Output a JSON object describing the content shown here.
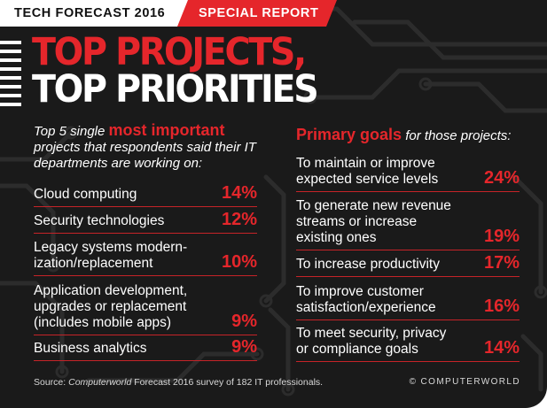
{
  "banner": {
    "left": "TECH FORECAST 2016",
    "right": "SPECIAL REPORT"
  },
  "headline": {
    "line1": "TOP PROJECTS,",
    "line2": "TOP PRIORITIES"
  },
  "left_intro": {
    "part1": "Top 5 single ",
    "highlight": "most important",
    "part2": " projects that respondents said their IT departments are working on:"
  },
  "right_intro": {
    "highlight": "Primary goals",
    "part2": " for those projects:"
  },
  "chart_data": [
    {
      "type": "table",
      "title": "Top 5 single most important projects that respondents said their IT departments are working on:",
      "categories": [
        "Cloud computing",
        "Security technologies",
        "Legacy systems modern-ization/replacement",
        "Application development, upgrades or replacement (includes mobile apps)",
        "Business analytics"
      ],
      "values": [
        "14%",
        "12%",
        "10%",
        "9%",
        "9%"
      ]
    },
    {
      "type": "table",
      "title": "Primary goals for those projects:",
      "categories": [
        "To maintain or improve expected service levels",
        "To generate new revenue streams or increase existing ones",
        "To increase productivity",
        "To improve customer satisfaction/experience",
        "To meet security, privacy or compliance goals"
      ],
      "values": [
        "24%",
        "19%",
        "17%",
        "16%",
        "14%"
      ]
    }
  ],
  "left_rows": [
    {
      "lines": [
        "Cloud computing"
      ],
      "value": "14%"
    },
    {
      "lines": [
        "Security technologies"
      ],
      "value": "12%"
    },
    {
      "lines": [
        "Legacy systems modern-",
        "ization/replacement"
      ],
      "value": "10%"
    },
    {
      "lines": [
        "Application development,",
        "upgrades or replacement",
        "(includes mobile apps)"
      ],
      "value": "9%"
    },
    {
      "lines": [
        "Business analytics"
      ],
      "value": "9%"
    }
  ],
  "right_rows": [
    {
      "lines": [
        "To maintain or improve",
        "expected service levels"
      ],
      "value": "24%"
    },
    {
      "lines": [
        "To generate new revenue",
        "streams or increase",
        "existing ones"
      ],
      "value": "19%"
    },
    {
      "lines": [
        "To increase productivity"
      ],
      "value": "17%"
    },
    {
      "lines": [
        "To improve customer",
        "satisfaction/experience"
      ],
      "value": "16%"
    },
    {
      "lines": [
        "To meet security, privacy",
        "or compliance goals"
      ],
      "value": "14%"
    }
  ],
  "footer": {
    "source_prefix": "Source: ",
    "source_name": "Computerworld",
    "source_rest": " Forecast 2016 survey of 182 IT professionals.",
    "brand": "© COMPUTERWORLD"
  },
  "colors": {
    "accent": "#e5262b",
    "background": "#1a1a1a",
    "text": "#ffffff"
  }
}
